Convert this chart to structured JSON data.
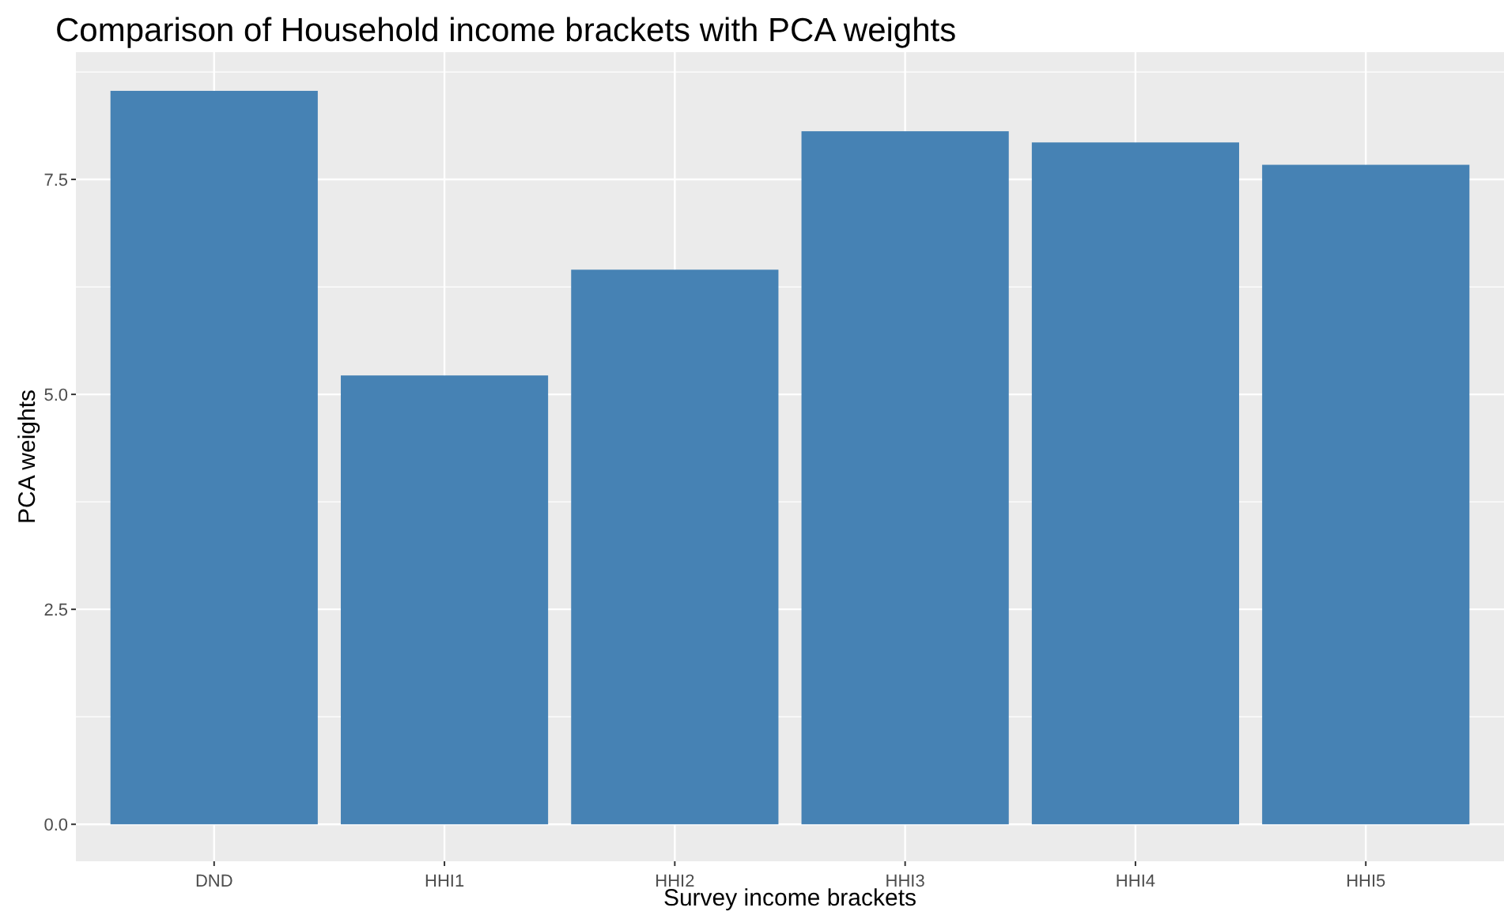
{
  "chart_data": {
    "type": "bar",
    "title": "Comparison of Household income brackets with PCA weights",
    "xlabel": "Survey income brackets",
    "ylabel": "PCA weights",
    "categories": [
      "DND",
      "HHI1",
      "HHI2",
      "HHI3",
      "HHI4",
      "HHI5"
    ],
    "values": [
      8.53,
      5.22,
      6.45,
      8.06,
      7.93,
      7.67
    ],
    "color": "#4682b4",
    "ylim": [
      -0.43,
      8.98
    ],
    "yticks": [
      {
        "value": 0,
        "label": "0.0"
      },
      2.5,
      {
        "value": 5,
        "label": "5.0"
      },
      7.5
    ],
    "grid": true
  }
}
